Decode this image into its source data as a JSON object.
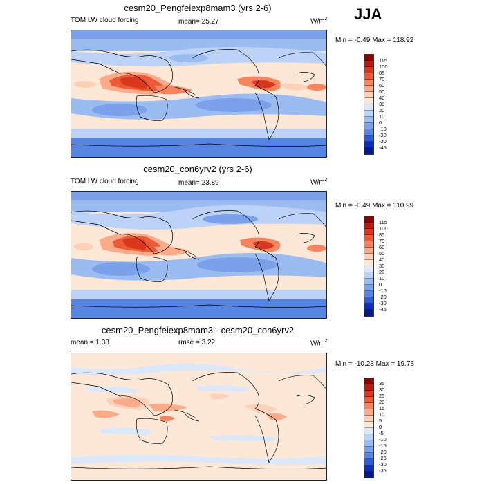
{
  "season": "JJA",
  "panels": [
    {
      "id": "p1",
      "title": "cesm20_Pengfeiexp8mam3 (yrs 2-6)",
      "left_label": "TOM LW cloud forcing",
      "center_label": "mean=  25.27",
      "units_base": "W/m",
      "units_exp": "2",
      "minmax": "Min =  -0.49 Max = 118.92",
      "colorbar_levels": [
        "115",
        "100",
        "85",
        "70",
        "60",
        "50",
        "40",
        "30",
        "20",
        "10",
        "0",
        "-10",
        "-20",
        "-30",
        "-45"
      ]
    },
    {
      "id": "p2",
      "title": "cesm20_con6yrv2 (yrs 2-6)",
      "left_label": "TOM LW cloud forcing",
      "center_label": "mean=  23.89",
      "units_base": "W/m",
      "units_exp": "2",
      "minmax": "Min =  -0.49 Max = 110.99",
      "colorbar_levels": [
        "115",
        "100",
        "85",
        "70",
        "60",
        "50",
        "40",
        "30",
        "20",
        "10",
        "0",
        "-10",
        "-20",
        "-30",
        "-45"
      ]
    },
    {
      "id": "p3",
      "title": "cesm20_Pengfeiexp8mam3 - cesm20_con6yrv2",
      "left_label": "mean =   1.38",
      "center_label": "rmse =   3.22",
      "units_base": "W/m",
      "units_exp": "2",
      "minmax": "Min = -10.28 Max =  19.78",
      "colorbar_levels": [
        "35",
        "30",
        "25",
        "20",
        "15",
        "10",
        "5",
        "0",
        "-5",
        "-10",
        "-15",
        "-20",
        "-25",
        "-30",
        "-35"
      ]
    }
  ],
  "colors": {
    "abs_scale": [
      "#8b0000",
      "#b71c0c",
      "#d9381e",
      "#ec5a36",
      "#f5845f",
      "#f9ab8a",
      "#fcd1b8",
      "#fde8d8",
      "#dbe8fb",
      "#bcd2f6",
      "#9bbcf1",
      "#7ba1ea",
      "#5785e3",
      "#2e5bd6",
      "#0b2fb8",
      "#001a8c"
    ],
    "diff_scale": [
      "#8b0000",
      "#b71c0c",
      "#d9381e",
      "#ec5a36",
      "#f5845f",
      "#f9ab8a",
      "#fcd1b8",
      "#fde8d8",
      "#dbe8fb",
      "#bcd2f6",
      "#9bbcf1",
      "#7ba1ea",
      "#5785e3",
      "#2e5bd6",
      "#0b2fb8",
      "#001a8c"
    ],
    "map_bg_abs": "#fde8d8",
    "map_bg_diff": "#fde8d8"
  }
}
